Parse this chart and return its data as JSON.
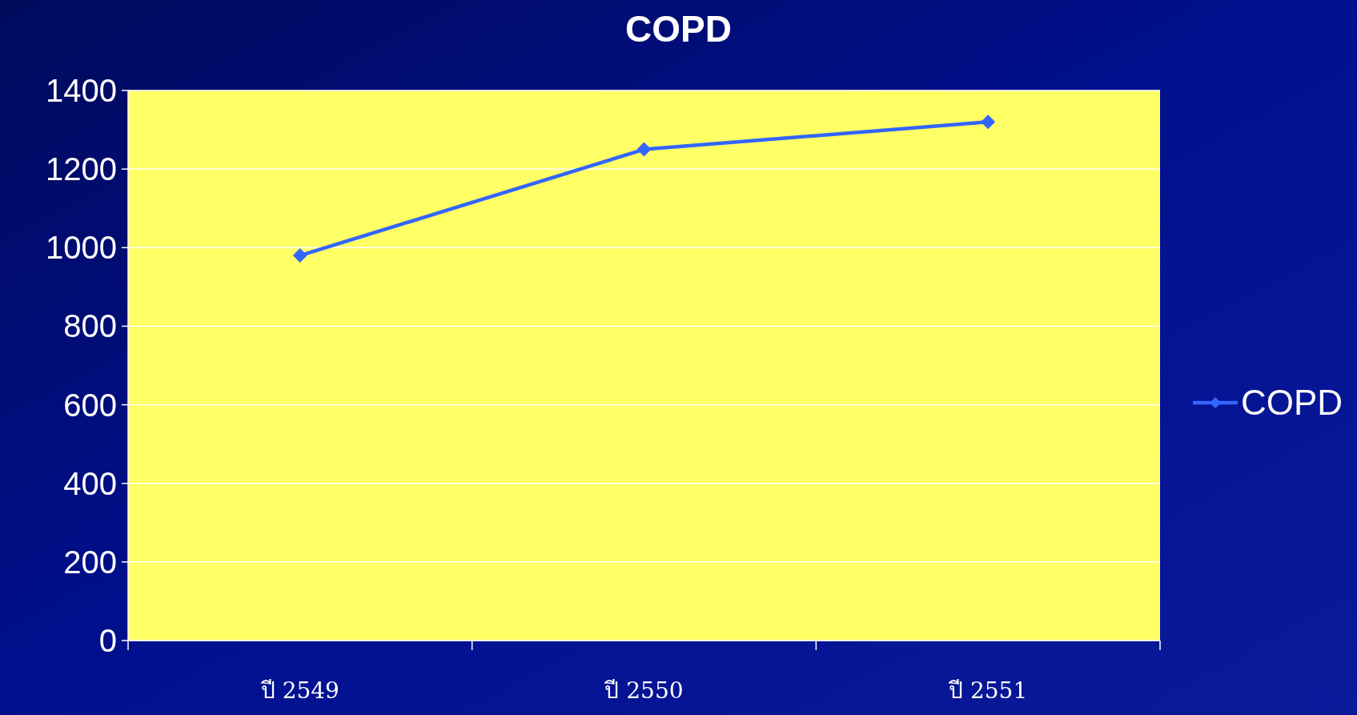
{
  "chart_data": {
    "type": "line",
    "title": "COPD",
    "categories": [
      "ปี 2549",
      "ปี 2550",
      "ปี 2551"
    ],
    "series": [
      {
        "name": "COPD",
        "color": "#3366ff",
        "values": [
          980,
          1250,
          1320
        ]
      }
    ],
    "ylim": [
      0,
      1400
    ],
    "yticks": [
      0,
      200,
      400,
      600,
      800,
      1000,
      1200,
      1400
    ],
    "grid": "y",
    "legend": "right",
    "marker": "diamond"
  }
}
